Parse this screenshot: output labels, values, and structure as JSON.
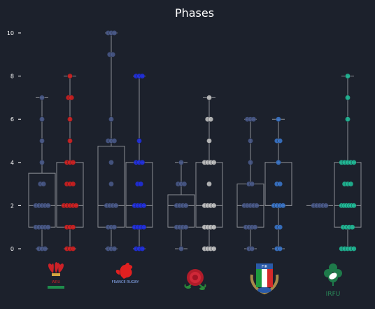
{
  "chart_data": {
    "type": "box-strip",
    "title": "Phases",
    "xlabel": "",
    "ylabel": "",
    "ylim": [
      -0.5,
      10.5
    ],
    "yticks": [
      0,
      2,
      4,
      6,
      8,
      10
    ],
    "grid": false,
    "legend": "none",
    "category_labels_as_logos": true,
    "teams": [
      {
        "name": "Wales",
        "logo": "wales-feathers-logo",
        "logo_text": "WRU",
        "series": [
          {
            "color": "#4a5a8c",
            "box": {
              "whislo": 0,
              "q1": 1,
              "med": 2,
              "q3": 3.5,
              "whishi": 7
            },
            "points": [
              0,
              0,
              0,
              1,
              1,
              1,
              1,
              1,
              2,
              2,
              2,
              2,
              2,
              3,
              3,
              4,
              5,
              6,
              7
            ]
          },
          {
            "color": "#d81e1e",
            "box": {
              "whislo": 0,
              "q1": 1,
              "med": 2,
              "q3": 4,
              "whishi": 8
            },
            "points": [
              0,
              0,
              0,
              1,
              1,
              1,
              2,
              2,
              2,
              2,
              2,
              3,
              3,
              3,
              4,
              4,
              4,
              5,
              6,
              7,
              7,
              8
            ]
          }
        ]
      },
      {
        "name": "France",
        "logo": "france-rooster-logo",
        "logo_text": "FRANCE RUGBY",
        "series": [
          {
            "color": "#4a5a8c",
            "box": {
              "whislo": 0,
              "q1": 1,
              "med": 2,
              "q3": 4.75,
              "whishi": 10
            },
            "points": [
              0,
              0,
              0,
              1,
              1,
              1,
              2,
              2,
              2,
              2,
              3,
              4,
              5,
              5,
              5,
              6,
              9,
              9,
              10,
              10,
              10
            ]
          },
          {
            "color": "#1e2ee8",
            "box": {
              "whislo": 0,
              "q1": 1,
              "med": 2,
              "q3": 4,
              "whishi": 8
            },
            "points": [
              0,
              0,
              0,
              1,
              1,
              1,
              1,
              2,
              2,
              2,
              2,
              3,
              3,
              4,
              4,
              4,
              5,
              8,
              8,
              8
            ]
          }
        ]
      },
      {
        "name": "England",
        "logo": "england-rose-logo",
        "logo_text": "",
        "series": [
          {
            "color": "#4a5a8c",
            "box": {
              "whislo": 0,
              "q1": 1,
              "med": 2,
              "q3": 2.5,
              "whishi": 4
            },
            "points": [
              0,
              1,
              1,
              1,
              1,
              2,
              2,
              2,
              2,
              3,
              3,
              3,
              4
            ]
          },
          {
            "color": "#c8c8c8",
            "box": {
              "whislo": 0,
              "q1": 1,
              "med": 2,
              "q3": 4,
              "whishi": 7
            },
            "points": [
              0,
              0,
              0,
              0,
              1,
              1,
              1,
              1,
              2,
              2,
              2,
              2,
              3,
              4,
              4,
              4,
              4,
              5,
              6,
              6,
              7
            ]
          }
        ]
      },
      {
        "name": "Italy",
        "logo": "italy-fir-logo",
        "logo_text": "FIR",
        "series": [
          {
            "color": "#4a5a8c",
            "box": {
              "whislo": 0,
              "q1": 1,
              "med": 2,
              "q3": 3,
              "whishi": 6
            },
            "points": [
              0,
              0,
              1,
              1,
              1,
              1,
              2,
              2,
              2,
              2,
              2,
              3,
              3,
              4,
              5,
              6,
              6,
              6
            ]
          },
          {
            "color": "#3a78d0",
            "box": {
              "whislo": 0,
              "q1": 2,
              "med": 2,
              "q3": 4,
              "whishi": 6
            },
            "points": [
              0,
              0,
              1,
              1,
              2,
              2,
              2,
              2,
              3,
              3,
              4,
              5,
              5,
              6
            ]
          }
        ]
      },
      {
        "name": "Ireland",
        "logo": "ireland-shamrock-logo",
        "logo_text": "IRFU",
        "series": [
          {
            "color": "#4a5a8c",
            "box": {
              "whislo": 2,
              "q1": 2,
              "med": 2,
              "q3": 2,
              "whishi": 2
            },
            "points": [
              2,
              2,
              2,
              2,
              2
            ]
          },
          {
            "color": "#1fbf9a",
            "box": {
              "whislo": 0,
              "q1": 1,
              "med": 2,
              "q3": 4,
              "whishi": 8
            },
            "points": [
              0,
              0,
              0,
              0,
              0,
              1,
              1,
              1,
              1,
              2,
              2,
              2,
              2,
              2,
              2,
              3,
              3,
              3,
              4,
              4,
              4,
              4,
              4,
              6,
              7,
              8
            ]
          }
        ]
      }
    ]
  }
}
